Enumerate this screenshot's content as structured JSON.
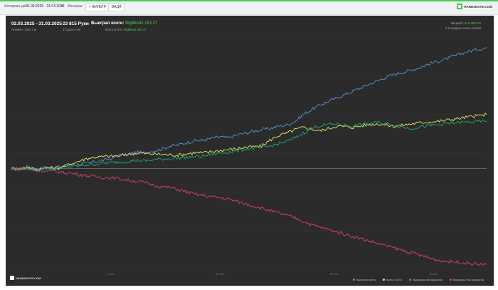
{
  "toolbar": {
    "interval_label": "Интервал дат:",
    "date_range": "01.03.2025 - 31.03.2025",
    "filters_label": "Фильтры:",
    "filter_button": "+ ФИЛЬТР",
    "reset_button": "ВАДЛ",
    "brand": "HAND2NOTE.COM"
  },
  "stats": {
    "period": "02.03.2025 - 31.03.2025",
    "period_sub": "Активен: 130ч 2 м",
    "hands": "23 815 Руки",
    "hands_sub": "172 рук в час",
    "won_label": "Выиграл всего:",
    "won_value": "BigBlind2,153.27",
    "ev_label": "Всего по EV:",
    "ev_value": "BigBlind2,486.72",
    "winrate_label": "Винрейт:",
    "winrate_value": "9.04 BB/100",
    "avg_label": "2.5 средних число столов"
  },
  "brand_bottom": "HAND2NOTE.COM",
  "legend": [
    {
      "label": "Выиграл всего",
      "color": "#5b8fd6"
    },
    {
      "label": "Всего по EV",
      "color": "#e9e86a"
    },
    {
      "label": "Выигрыш на вскрытии",
      "color": "#1fa872"
    },
    {
      "label": "Выигрыш без вскрытия",
      "color": "#d8416e"
    }
  ],
  "chart_data": {
    "type": "line",
    "series": [
      {
        "name": "Выиграл всего",
        "color": "#5b8fd6",
        "values": [
          0,
          -3,
          8,
          -4,
          5,
          3,
          6,
          15,
          18,
          22,
          28,
          35,
          42,
          55,
          60,
          70,
          66,
          75,
          82,
          95,
          100,
          110,
          118,
          120,
          128,
          135,
          130,
          142,
          150,
          158,
          165,
          170,
          180,
          185,
          200,
          230,
          250,
          270,
          285,
          300,
          315,
          330,
          345,
          360,
          375,
          390,
          402,
          410,
          420,
          430,
          445,
          455,
          465,
          478,
          490,
          500,
          508,
          515
        ]
      },
      {
        "name": "Всего по EV",
        "color": "#e9e86a",
        "values": [
          0,
          -2,
          6,
          -6,
          4,
          2,
          5,
          18,
          30,
          42,
          48,
          50,
          52,
          55,
          60,
          65,
          64,
          62,
          60,
          58,
          57,
          62,
          68,
          66,
          72,
          76,
          80,
          85,
          90,
          92,
          95,
          120,
          140,
          150,
          165,
          175,
          168,
          160,
          170,
          180,
          178,
          175,
          182,
          188,
          190,
          185,
          180,
          185,
          190,
          195,
          198,
          200,
          205,
          210,
          215,
          220,
          225,
          230
        ]
      },
      {
        "name": "Выигрыш на вскрытии",
        "color": "#1fa872",
        "values": [
          0,
          -3,
          5,
          -8,
          2,
          -2,
          0,
          8,
          10,
          15,
          18,
          22,
          25,
          28,
          30,
          34,
          32,
          36,
          40,
          42,
          44,
          48,
          50,
          52,
          60,
          65,
          70,
          75,
          82,
          86,
          88,
          95,
          105,
          115,
          130,
          150,
          170,
          182,
          188,
          190,
          185,
          180,
          188,
          192,
          196,
          190,
          185,
          175,
          170,
          178,
          182,
          185,
          190,
          194,
          196,
          198,
          200,
          201
        ]
      },
      {
        "name": "Выигрыш без вскрытия",
        "color": "#d8416e",
        "values": [
          0,
          -2,
          -6,
          -8,
          -10,
          -12,
          -16,
          -20,
          -25,
          -30,
          -35,
          -38,
          -40,
          -44,
          -50,
          -55,
          -60,
          -70,
          -78,
          -82,
          -90,
          -100,
          -110,
          -115,
          -120,
          -125,
          -130,
          -140,
          -150,
          -160,
          -170,
          -180,
          -190,
          -200,
          -210,
          -225,
          -240,
          -250,
          -260,
          -270,
          -280,
          -290,
          -300,
          -310,
          -320,
          -330,
          -340,
          -350,
          -360,
          -370,
          -380,
          -390,
          -395,
          -398,
          -400,
          -405,
          -408,
          -410
        ]
      }
    ],
    "xlim": [
      0,
      57
    ],
    "ylim": [
      -430,
      560
    ],
    "x_ticks": [
      "1 000",
      "10 000",
      "20 000",
      "23 815"
    ],
    "grid": true,
    "legend_position": "bottom-right"
  }
}
